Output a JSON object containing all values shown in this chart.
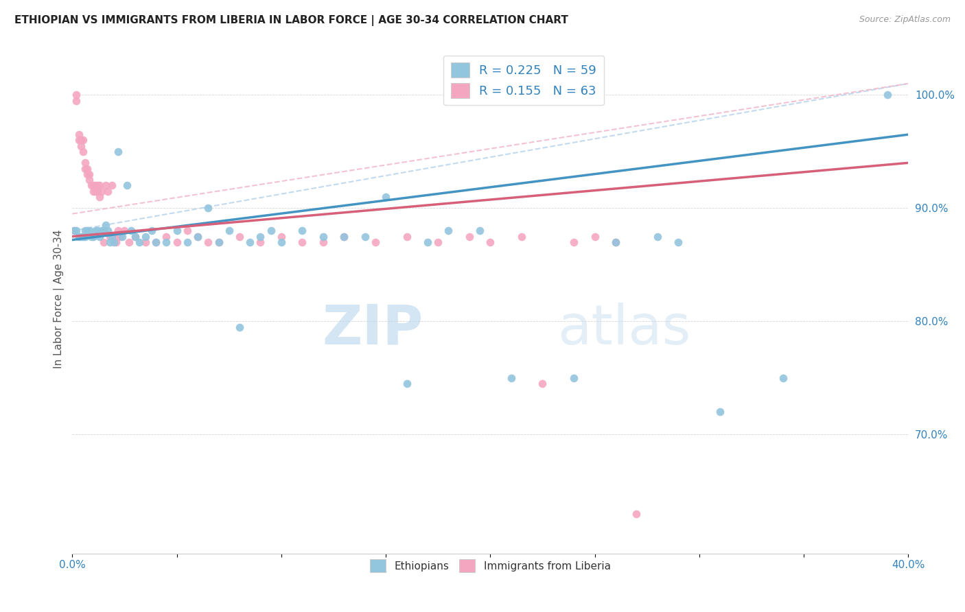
{
  "title": "ETHIOPIAN VS IMMIGRANTS FROM LIBERIA IN LABOR FORCE | AGE 30-34 CORRELATION CHART",
  "source": "Source: ZipAtlas.com",
  "ylabel": "In Labor Force | Age 30-34",
  "ytick_labels": [
    "70.0%",
    "80.0%",
    "90.0%",
    "100.0%"
  ],
  "ytick_values": [
    0.7,
    0.8,
    0.9,
    1.0
  ],
  "legend_bottom_blue": "Ethiopians",
  "legend_bottom_pink": "Immigrants from Liberia",
  "color_blue": "#92c5de",
  "color_pink": "#f4a6c0",
  "line_blue": "#4393c3",
  "line_pink": "#d6607a",
  "line_dashed_blue": "#b8d4ec",
  "line_dashed_pink": "#f0b8cc",
  "watermark_zip": "ZIP",
  "watermark_atlas": "atlas",
  "R_blue": 0.225,
  "N_blue": 59,
  "R_pink": 0.155,
  "N_pink": 63,
  "xmin": 0.0,
  "xmax": 0.4,
  "ymin": 0.595,
  "ymax": 1.045,
  "blue_x": [
    0.001,
    0.002,
    0.003,
    0.004,
    0.005,
    0.006,
    0.006,
    0.007,
    0.008,
    0.009,
    0.01,
    0.011,
    0.012,
    0.013,
    0.014,
    0.015,
    0.016,
    0.017,
    0.018,
    0.019,
    0.02,
    0.022,
    0.024,
    0.026,
    0.028,
    0.03,
    0.032,
    0.035,
    0.038,
    0.04,
    0.045,
    0.05,
    0.055,
    0.06,
    0.065,
    0.07,
    0.075,
    0.08,
    0.085,
    0.09,
    0.095,
    0.1,
    0.11,
    0.12,
    0.13,
    0.14,
    0.15,
    0.16,
    0.17,
    0.18,
    0.195,
    0.21,
    0.24,
    0.26,
    0.28,
    0.29,
    0.31,
    0.34,
    0.39
  ],
  "blue_y": [
    0.88,
    0.88,
    0.875,
    0.875,
    0.875,
    0.875,
    0.88,
    0.88,
    0.88,
    0.875,
    0.875,
    0.88,
    0.88,
    0.875,
    0.88,
    0.88,
    0.885,
    0.88,
    0.87,
    0.875,
    0.87,
    0.95,
    0.875,
    0.92,
    0.88,
    0.875,
    0.87,
    0.875,
    0.88,
    0.87,
    0.87,
    0.88,
    0.87,
    0.875,
    0.9,
    0.87,
    0.88,
    0.795,
    0.87,
    0.875,
    0.88,
    0.87,
    0.88,
    0.875,
    0.875,
    0.875,
    0.91,
    0.745,
    0.87,
    0.88,
    0.88,
    0.75,
    0.75,
    0.87,
    0.875,
    0.87,
    0.72,
    0.75,
    1.0
  ],
  "pink_x": [
    0.001,
    0.002,
    0.002,
    0.003,
    0.003,
    0.004,
    0.004,
    0.005,
    0.005,
    0.006,
    0.006,
    0.007,
    0.007,
    0.008,
    0.008,
    0.009,
    0.01,
    0.01,
    0.011,
    0.011,
    0.012,
    0.012,
    0.013,
    0.013,
    0.014,
    0.015,
    0.015,
    0.016,
    0.017,
    0.018,
    0.019,
    0.02,
    0.021,
    0.022,
    0.023,
    0.025,
    0.027,
    0.03,
    0.035,
    0.04,
    0.045,
    0.05,
    0.055,
    0.06,
    0.065,
    0.07,
    0.08,
    0.09,
    0.1,
    0.11,
    0.12,
    0.13,
    0.145,
    0.16,
    0.175,
    0.19,
    0.2,
    0.215,
    0.225,
    0.24,
    0.25,
    0.26,
    0.27
  ],
  "pink_y": [
    0.88,
    1.0,
    0.995,
    0.965,
    0.96,
    0.96,
    0.955,
    0.96,
    0.95,
    0.94,
    0.935,
    0.935,
    0.93,
    0.93,
    0.925,
    0.92,
    0.92,
    0.915,
    0.92,
    0.915,
    0.92,
    0.915,
    0.91,
    0.92,
    0.915,
    0.88,
    0.87,
    0.92,
    0.915,
    0.875,
    0.92,
    0.875,
    0.87,
    0.88,
    0.875,
    0.88,
    0.87,
    0.875,
    0.87,
    0.87,
    0.875,
    0.87,
    0.88,
    0.875,
    0.87,
    0.87,
    0.875,
    0.87,
    0.875,
    0.87,
    0.87,
    0.875,
    0.87,
    0.875,
    0.87,
    0.875,
    0.87,
    0.875,
    0.745,
    0.87,
    0.875,
    0.87,
    0.63
  ]
}
